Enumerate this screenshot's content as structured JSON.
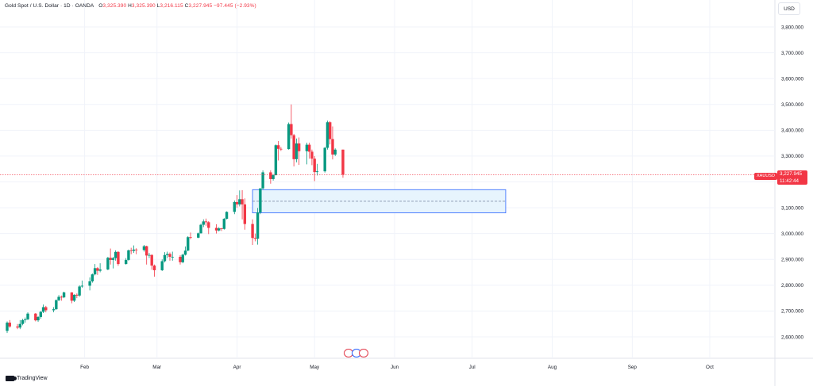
{
  "legend": {
    "symbol": "Gold Spot / U.S. Dollar · 1D · OANDA",
    "o_label": "O",
    "o_value": "3,325.390",
    "h_label": "H",
    "h_value": "3,325.390",
    "l_label": "L",
    "l_value": "3,216.115",
    "c_label": "C",
    "c_value": "3,227.945",
    "change": "−97.445 (−2.93%)"
  },
  "currency": "USD",
  "price_tag": {
    "symbol": "XAUUSD",
    "price": "3,227.945",
    "countdown": "11:42:44"
  },
  "brand": "TradingView",
  "colors": {
    "up": "#089981",
    "down": "#f23645",
    "zone_fill": "#e3f2fd",
    "zone_border": "#2962ff",
    "grid": "#f0f3fa"
  },
  "chart_data": {
    "type": "candlestick",
    "y_axis": {
      "range": [
        2540,
        3860
      ],
      "ticks": [
        2600,
        2700,
        2800,
        2900,
        3000,
        3100,
        3200,
        3300,
        3400,
        3500,
        3600,
        3700,
        3800
      ],
      "tick_labels": [
        "2,600.000",
        "2,700.000",
        "2,800.000",
        "2,900.000",
        "3,000.000",
        "3,100.000",
        "3,200.000",
        "3,300.000",
        "3,400.000",
        "3,500.000",
        "3,600.000",
        "3,700.000",
        "3,800.000"
      ]
    },
    "x_axis": {
      "range": [
        "2025-01-02",
        "2025-10-13"
      ],
      "ticks": [
        "2025-02-01",
        "2025-03-01",
        "2025-04-01",
        "2025-05-01",
        "2025-06-01",
        "2025-07-01",
        "2025-08-01",
        "2025-09-01",
        "2025-10-01"
      ],
      "tick_labels": [
        "Feb",
        "Mar",
        "Apr",
        "May",
        "Jun",
        "Jul",
        "Aug",
        "Sep",
        "Oct"
      ]
    },
    "last_price": 3227.945,
    "zone": {
      "x_start": "2025-04-07",
      "x_end": "2025-07-14",
      "top": 3170,
      "bottom": 3080,
      "mid": 3125
    },
    "candles": [
      {
        "date": "2025-01-02",
        "o": 2623,
        "h": 2660,
        "l": 2615,
        "c": 2655
      },
      {
        "date": "2025-01-03",
        "o": 2655,
        "h": 2665,
        "l": 2635,
        "c": 2640
      },
      {
        "date": "2025-01-06",
        "o": 2640,
        "h": 2650,
        "l": 2630,
        "c": 2636
      },
      {
        "date": "2025-01-07",
        "o": 2636,
        "h": 2665,
        "l": 2630,
        "c": 2650
      },
      {
        "date": "2025-01-08",
        "o": 2650,
        "h": 2670,
        "l": 2645,
        "c": 2665
      },
      {
        "date": "2025-01-09",
        "o": 2665,
        "h": 2675,
        "l": 2655,
        "c": 2668
      },
      {
        "date": "2025-01-10",
        "o": 2668,
        "h": 2695,
        "l": 2665,
        "c": 2690
      },
      {
        "date": "2025-01-13",
        "o": 2690,
        "h": 2692,
        "l": 2660,
        "c": 2664
      },
      {
        "date": "2025-01-14",
        "o": 2664,
        "h": 2680,
        "l": 2658,
        "c": 2677
      },
      {
        "date": "2025-01-15",
        "o": 2677,
        "h": 2700,
        "l": 2670,
        "c": 2697
      },
      {
        "date": "2025-01-16",
        "o": 2697,
        "h": 2725,
        "l": 2692,
        "c": 2715
      },
      {
        "date": "2025-01-17",
        "o": 2715,
        "h": 2720,
        "l": 2695,
        "c": 2703
      },
      {
        "date": "2025-01-20",
        "o": 2703,
        "h": 2715,
        "l": 2695,
        "c": 2707
      },
      {
        "date": "2025-01-21",
        "o": 2707,
        "h": 2745,
        "l": 2705,
        "c": 2742
      },
      {
        "date": "2025-01-22",
        "o": 2742,
        "h": 2762,
        "l": 2738,
        "c": 2755
      },
      {
        "date": "2025-01-23",
        "o": 2755,
        "h": 2760,
        "l": 2740,
        "c": 2753
      },
      {
        "date": "2025-01-24",
        "o": 2753,
        "h": 2775,
        "l": 2750,
        "c": 2772
      },
      {
        "date": "2025-01-27",
        "o": 2772,
        "h": 2773,
        "l": 2730,
        "c": 2740
      },
      {
        "date": "2025-01-28",
        "o": 2740,
        "h": 2765,
        "l": 2735,
        "c": 2763
      },
      {
        "date": "2025-01-29",
        "o": 2763,
        "h": 2768,
        "l": 2750,
        "c": 2760
      },
      {
        "date": "2025-01-30",
        "o": 2760,
        "h": 2800,
        "l": 2755,
        "c": 2795
      },
      {
        "date": "2025-01-31",
        "o": 2795,
        "h": 2818,
        "l": 2790,
        "c": 2798
      },
      {
        "date": "2025-02-03",
        "o": 2798,
        "h": 2830,
        "l": 2780,
        "c": 2815
      },
      {
        "date": "2025-02-04",
        "o": 2815,
        "h": 2845,
        "l": 2810,
        "c": 2842
      },
      {
        "date": "2025-02-05",
        "o": 2842,
        "h": 2882,
        "l": 2838,
        "c": 2866
      },
      {
        "date": "2025-02-06",
        "o": 2866,
        "h": 2870,
        "l": 2840,
        "c": 2856
      },
      {
        "date": "2025-02-07",
        "o": 2856,
        "h": 2885,
        "l": 2850,
        "c": 2861
      },
      {
        "date": "2025-02-10",
        "o": 2861,
        "h": 2910,
        "l": 2858,
        "c": 2906
      },
      {
        "date": "2025-02-11",
        "o": 2906,
        "h": 2942,
        "l": 2880,
        "c": 2898
      },
      {
        "date": "2025-02-12",
        "o": 2898,
        "h": 2910,
        "l": 2865,
        "c": 2905
      },
      {
        "date": "2025-02-13",
        "o": 2905,
        "h": 2935,
        "l": 2895,
        "c": 2929
      },
      {
        "date": "2025-02-14",
        "o": 2929,
        "h": 2932,
        "l": 2875,
        "c": 2882
      },
      {
        "date": "2025-02-17",
        "o": 2882,
        "h": 2905,
        "l": 2880,
        "c": 2898
      },
      {
        "date": "2025-02-18",
        "o": 2898,
        "h": 2938,
        "l": 2895,
        "c": 2935
      },
      {
        "date": "2025-02-19",
        "o": 2935,
        "h": 2945,
        "l": 2920,
        "c": 2933
      },
      {
        "date": "2025-02-20",
        "o": 2933,
        "h": 2954,
        "l": 2925,
        "c": 2938
      },
      {
        "date": "2025-02-21",
        "o": 2938,
        "h": 2943,
        "l": 2920,
        "c": 2936
      },
      {
        "date": "2025-02-24",
        "o": 2936,
        "h": 2956,
        "l": 2930,
        "c": 2951
      },
      {
        "date": "2025-02-25",
        "o": 2951,
        "h": 2953,
        "l": 2880,
        "c": 2915
      },
      {
        "date": "2025-02-26",
        "o": 2915,
        "h": 2925,
        "l": 2905,
        "c": 2917
      },
      {
        "date": "2025-02-27",
        "o": 2917,
        "h": 2920,
        "l": 2860,
        "c": 2876
      },
      {
        "date": "2025-02-28",
        "o": 2876,
        "h": 2880,
        "l": 2833,
        "c": 2858
      },
      {
        "date": "2025-03-03",
        "o": 2858,
        "h": 2900,
        "l": 2855,
        "c": 2893
      },
      {
        "date": "2025-03-04",
        "o": 2893,
        "h": 2928,
        "l": 2888,
        "c": 2917
      },
      {
        "date": "2025-03-05",
        "o": 2917,
        "h": 2930,
        "l": 2905,
        "c": 2921
      },
      {
        "date": "2025-03-06",
        "o": 2921,
        "h": 2927,
        "l": 2895,
        "c": 2910
      },
      {
        "date": "2025-03-07",
        "o": 2910,
        "h": 2930,
        "l": 2895,
        "c": 2910
      },
      {
        "date": "2025-03-10",
        "o": 2910,
        "h": 2916,
        "l": 2880,
        "c": 2889
      },
      {
        "date": "2025-03-11",
        "o": 2889,
        "h": 2922,
        "l": 2885,
        "c": 2918
      },
      {
        "date": "2025-03-12",
        "o": 2918,
        "h": 2950,
        "l": 2915,
        "c": 2934
      },
      {
        "date": "2025-03-13",
        "o": 2934,
        "h": 2990,
        "l": 2932,
        "c": 2986
      },
      {
        "date": "2025-03-14",
        "o": 2986,
        "h": 3004,
        "l": 2978,
        "c": 2984
      },
      {
        "date": "2025-03-17",
        "o": 2984,
        "h": 3004,
        "l": 2982,
        "c": 3001
      },
      {
        "date": "2025-03-18",
        "o": 3001,
        "h": 3038,
        "l": 3000,
        "c": 3034
      },
      {
        "date": "2025-03-19",
        "o": 3034,
        "h": 3055,
        "l": 3025,
        "c": 3047
      },
      {
        "date": "2025-03-20",
        "o": 3047,
        "h": 3058,
        "l": 3030,
        "c": 3044
      },
      {
        "date": "2025-03-21",
        "o": 3044,
        "h": 3048,
        "l": 2998,
        "c": 3022
      },
      {
        "date": "2025-03-24",
        "o": 3022,
        "h": 3036,
        "l": 3000,
        "c": 3012
      },
      {
        "date": "2025-03-25",
        "o": 3012,
        "h": 3025,
        "l": 3008,
        "c": 3020
      },
      {
        "date": "2025-03-26",
        "o": 3020,
        "h": 3022,
        "l": 3010,
        "c": 3018
      },
      {
        "date": "2025-03-27",
        "o": 3018,
        "h": 3060,
        "l": 3015,
        "c": 3057
      },
      {
        "date": "2025-03-28",
        "o": 3057,
        "h": 3086,
        "l": 3055,
        "c": 3084
      },
      {
        "date": "2025-03-31",
        "o": 3084,
        "h": 3128,
        "l": 3075,
        "c": 3122
      },
      {
        "date": "2025-04-01",
        "o": 3122,
        "h": 3149,
        "l": 3100,
        "c": 3113
      },
      {
        "date": "2025-04-02",
        "o": 3113,
        "h": 3167,
        "l": 3105,
        "c": 3133
      },
      {
        "date": "2025-04-03",
        "o": 3133,
        "h": 3168,
        "l": 3055,
        "c": 3113
      },
      {
        "date": "2025-04-04",
        "o": 3113,
        "h": 3136,
        "l": 3015,
        "c": 3037
      },
      {
        "date": "2025-04-07",
        "o": 3037,
        "h": 3055,
        "l": 2956,
        "c": 2983
      },
      {
        "date": "2025-04-08",
        "o": 2983,
        "h": 3000,
        "l": 2970,
        "c": 2980
      },
      {
        "date": "2025-04-09",
        "o": 2980,
        "h": 3099,
        "l": 2957,
        "c": 3082
      },
      {
        "date": "2025-04-10",
        "o": 3082,
        "h": 3175,
        "l": 3075,
        "c": 3175
      },
      {
        "date": "2025-04-11",
        "o": 3175,
        "h": 3245,
        "l": 3170,
        "c": 3237
      },
      {
        "date": "2025-04-14",
        "o": 3237,
        "h": 3245,
        "l": 3193,
        "c": 3211
      },
      {
        "date": "2025-04-15",
        "o": 3211,
        "h": 3230,
        "l": 3205,
        "c": 3226
      },
      {
        "date": "2025-04-16",
        "o": 3226,
        "h": 3345,
        "l": 3225,
        "c": 3342
      },
      {
        "date": "2025-04-17",
        "o": 3342,
        "h": 3358,
        "l": 3283,
        "c": 3328
      },
      {
        "date": "2025-04-18",
        "o": 3328,
        "h": 3335,
        "l": 3320,
        "c": 3327
      },
      {
        "date": "2025-04-21",
        "o": 3327,
        "h": 3430,
        "l": 3325,
        "c": 3424
      },
      {
        "date": "2025-04-22",
        "o": 3424,
        "h": 3500,
        "l": 3368,
        "c": 3381
      },
      {
        "date": "2025-04-23",
        "o": 3381,
        "h": 3386,
        "l": 3260,
        "c": 3288
      },
      {
        "date": "2025-04-24",
        "o": 3288,
        "h": 3368,
        "l": 3276,
        "c": 3349
      },
      {
        "date": "2025-04-25",
        "o": 3349,
        "h": 3372,
        "l": 3266,
        "c": 3319
      },
      {
        "date": "2025-04-28",
        "o": 3319,
        "h": 3352,
        "l": 3268,
        "c": 3344
      },
      {
        "date": "2025-04-29",
        "o": 3344,
        "h": 3352,
        "l": 3290,
        "c": 3317
      },
      {
        "date": "2025-04-30",
        "o": 3317,
        "h": 3325,
        "l": 3265,
        "c": 3290
      },
      {
        "date": "2025-05-01",
        "o": 3290,
        "h": 3300,
        "l": 3203,
        "c": 3238
      },
      {
        "date": "2025-05-02",
        "o": 3238,
        "h": 3270,
        "l": 3225,
        "c": 3241
      },
      {
        "date": "2025-05-05",
        "o": 3241,
        "h": 3335,
        "l": 3236,
        "c": 3332
      },
      {
        "date": "2025-05-06",
        "o": 3332,
        "h": 3437,
        "l": 3325,
        "c": 3431
      },
      {
        "date": "2025-05-07",
        "o": 3431,
        "h": 3435,
        "l": 3345,
        "c": 3366
      },
      {
        "date": "2025-05-08",
        "o": 3366,
        "h": 3415,
        "l": 3287,
        "c": 3306
      },
      {
        "date": "2025-05-09",
        "o": 3306,
        "h": 3330,
        "l": 3300,
        "c": 3325
      },
      {
        "date": "2025-05-12",
        "o": 3325,
        "h": 3325,
        "l": 3216,
        "c": 3228
      }
    ]
  }
}
